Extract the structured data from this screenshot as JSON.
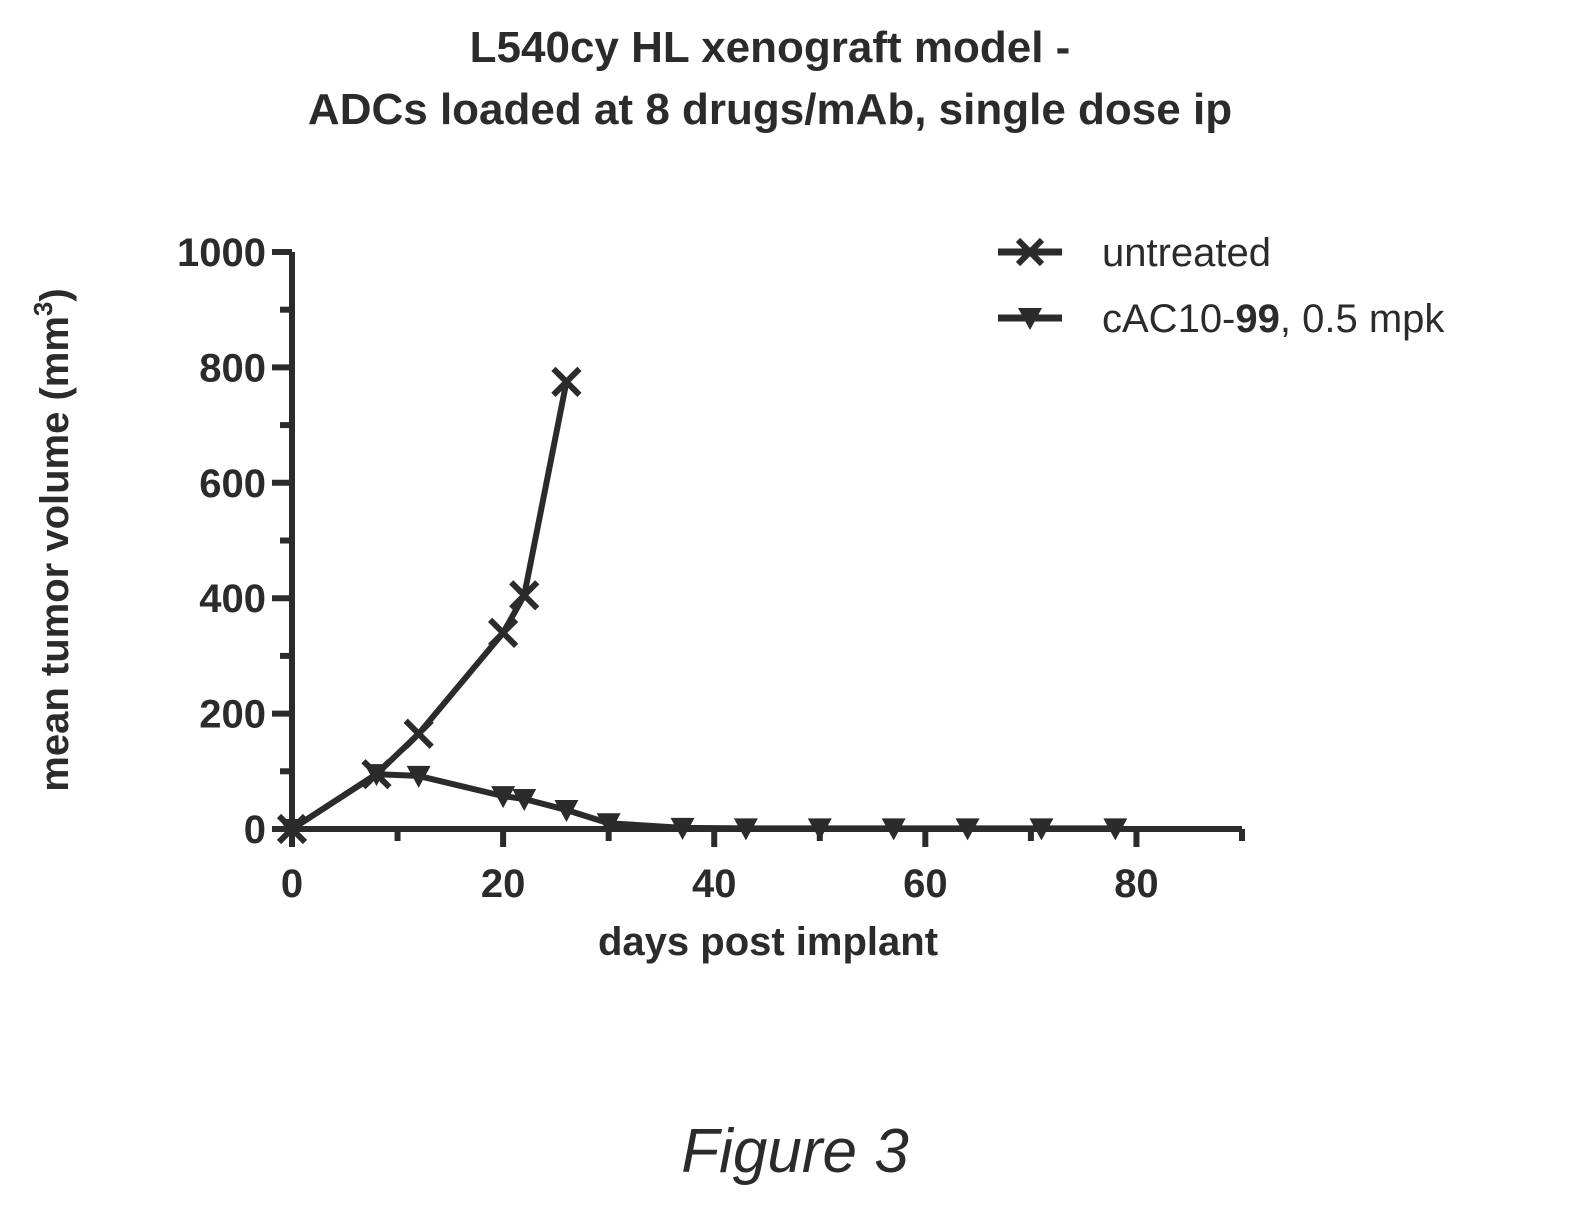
{
  "chart_data": {
    "type": "line",
    "title": "L540cy HL xenograft model -",
    "subtitle": "ADCs loaded at 8 drugs/mAb, single dose ip",
    "xlabel": "days post implant",
    "ylabel": "mean tumor volume (mm",
    "ylabel_superscript": "3",
    "ylabel_suffix": ")",
    "xlim": [
      0,
      90
    ],
    "ylim": [
      0,
      1000
    ],
    "x_ticks": [
      "0",
      "20",
      "40",
      "60",
      "80"
    ],
    "y_ticks": [
      "0",
      "200",
      "400",
      "600",
      "800",
      "1000"
    ],
    "x_tick_values": [
      0,
      20,
      40,
      60,
      80
    ],
    "y_tick_values": [
      0,
      200,
      400,
      600,
      800,
      1000
    ],
    "grid": false,
    "legend_position": "top-right",
    "series": [
      {
        "name": "untreated",
        "marker": "x",
        "color": "#2b2b2b",
        "x": [
          0,
          8,
          12,
          20,
          22,
          26
        ],
        "y": [
          0,
          95,
          165,
          340,
          405,
          775
        ]
      },
      {
        "name": "cAC10-99, 0.5 mpk",
        "name_prefix": "cAC10-",
        "name_bold": "99",
        "name_suffix": ", 0.5 mpk",
        "marker": "triangle-down",
        "color": "#2b2b2b",
        "x": [
          0,
          8,
          12,
          20,
          22,
          26,
          30,
          37,
          43,
          50,
          57,
          64,
          71,
          78
        ],
        "y": [
          0,
          95,
          92,
          57,
          52,
          33,
          10,
          2,
          1,
          1,
          1,
          1,
          1,
          1
        ]
      }
    ]
  },
  "caption": "Figure 3"
}
